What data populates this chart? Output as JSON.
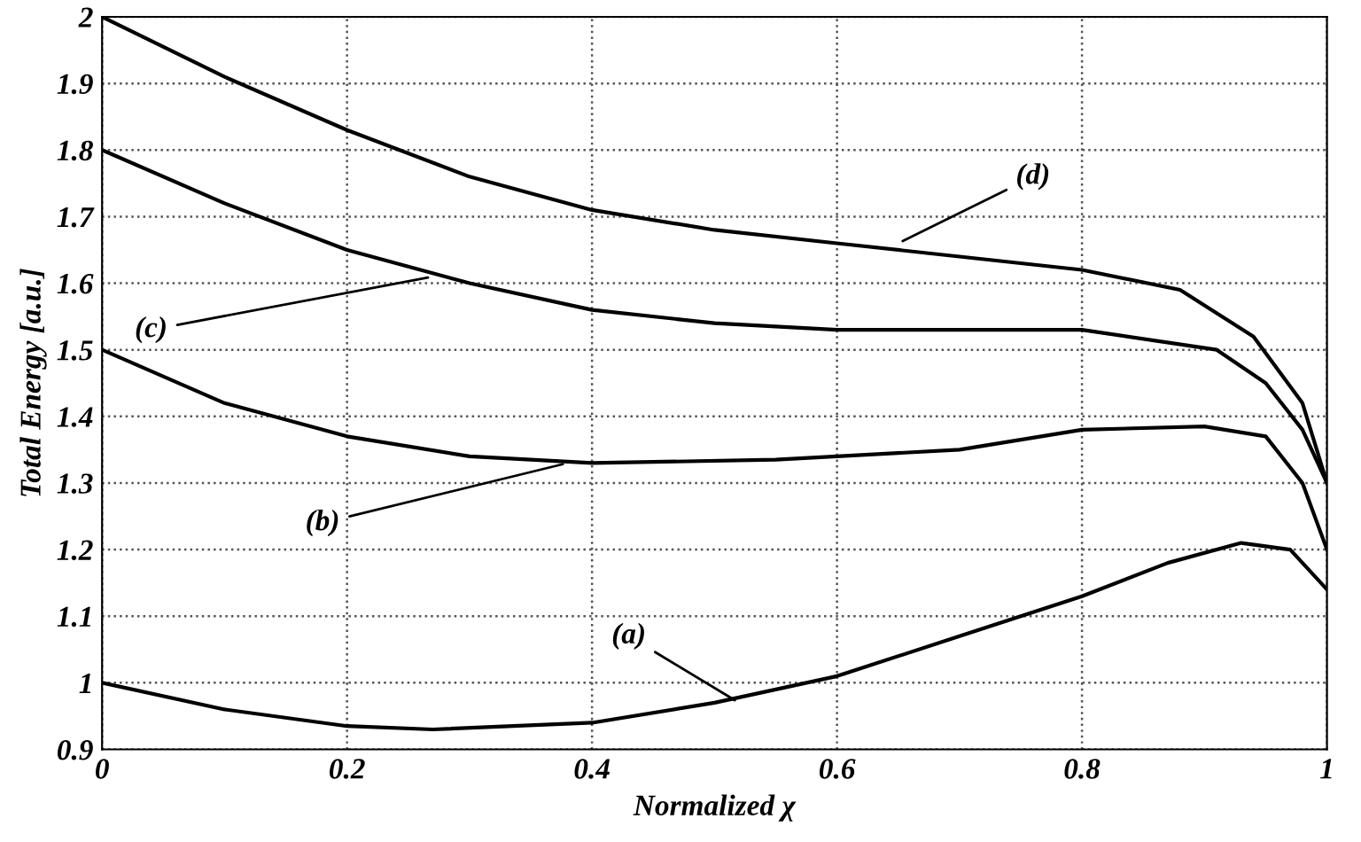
{
  "chart_data": {
    "type": "line",
    "xlabel": "Normalized χ",
    "ylabel": "Total Energy [a.u.]",
    "xlim": [
      0,
      1
    ],
    "ylim": [
      0.9,
      2
    ],
    "xticks": [
      0,
      0.2,
      0.4,
      0.6,
      0.8,
      1
    ],
    "yticks": [
      0.9,
      1,
      1.1,
      1.2,
      1.3,
      1.4,
      1.5,
      1.6,
      1.7,
      1.8,
      1.9,
      2
    ],
    "grid": true,
    "legend": false,
    "marker": "none",
    "line_style": "solid",
    "series": [
      {
        "color": "#000000",
        "x": [
          0,
          0.1,
          0.2,
          0.27,
          0.4,
          0.5,
          0.6,
          0.7,
          0.8,
          0.87,
          0.93,
          0.97,
          1
        ],
        "values": [
          1.0,
          0.96,
          0.935,
          0.93,
          0.94,
          0.97,
          1.01,
          1.07,
          1.13,
          1.18,
          1.21,
          1.2,
          1.14
        ]
      },
      {
        "color": "#000000",
        "x": [
          0,
          0.1,
          0.2,
          0.3,
          0.4,
          0.55,
          0.7,
          0.8,
          0.9,
          0.95,
          0.98,
          1
        ],
        "values": [
          1.5,
          1.42,
          1.37,
          1.34,
          1.33,
          1.335,
          1.35,
          1.38,
          1.385,
          1.37,
          1.3,
          1.2
        ]
      },
      {
        "color": "#000000",
        "x": [
          0,
          0.1,
          0.2,
          0.3,
          0.4,
          0.5,
          0.6,
          0.8,
          0.91,
          0.95,
          0.98,
          1
        ],
        "values": [
          1.8,
          1.72,
          1.65,
          1.6,
          1.56,
          1.54,
          1.53,
          1.53,
          1.5,
          1.45,
          1.38,
          1.3
        ]
      },
      {
        "color": "#000000",
        "x": [
          0,
          0.1,
          0.2,
          0.3,
          0.4,
          0.5,
          0.6,
          0.7,
          0.8,
          0.88,
          0.94,
          0.98,
          1
        ],
        "values": [
          2.0,
          1.91,
          1.83,
          1.76,
          1.71,
          1.68,
          1.66,
          1.64,
          1.62,
          1.59,
          1.52,
          1.42,
          1.3
        ]
      }
    ],
    "annotations": [
      {
        "text": "(a)",
        "x": 0.52,
        "y": 0.97
      },
      {
        "text": "(b)",
        "x": 0.38,
        "y": 1.33
      },
      {
        "text": "(c)",
        "x": 0.27,
        "y": 1.61
      },
      {
        "text": "(d)",
        "x": 0.65,
        "y": 1.66
      }
    ]
  }
}
